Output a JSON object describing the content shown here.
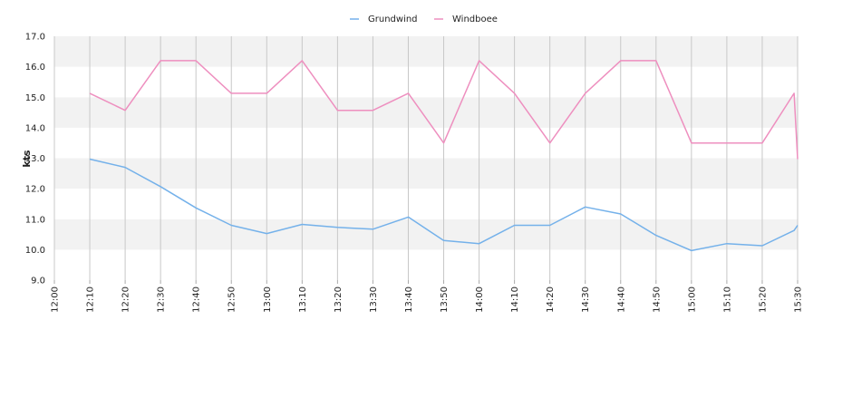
{
  "chart_data": {
    "type": "line",
    "title": "",
    "xlabel": "",
    "ylabel": "kts",
    "ylim": [
      9.0,
      17.0
    ],
    "y_ticks": [
      "9.0",
      "10.0",
      "11.0",
      "12.0",
      "13.0",
      "14.0",
      "15.0",
      "16.0",
      "17.0"
    ],
    "x_ticks": [
      "12:00",
      "12:10",
      "12:20",
      "12:30",
      "12:40",
      "12:50",
      "13:00",
      "13:10",
      "13:20",
      "13:30",
      "13:40",
      "13:50",
      "14:00",
      "14:10",
      "14:20",
      "14:30",
      "14:40",
      "14:50",
      "15:00",
      "15:10",
      "15:20",
      "15:30"
    ],
    "grid": true,
    "legend_position": "top-center",
    "series": [
      {
        "name": "Grundwind",
        "color": "#74b1ea",
        "x": [
          "12:10",
          "12:20",
          "12:30",
          "12:40",
          "12:50",
          "13:00",
          "13:10",
          "13:20",
          "13:30",
          "13:40",
          "13:50",
          "14:00",
          "14:10",
          "14:20",
          "14:30",
          "14:40",
          "14:50",
          "15:00",
          "15:10",
          "15:20",
          "15:29",
          "15:30"
        ],
        "values": [
          12.97,
          12.7,
          12.07,
          11.37,
          10.8,
          10.53,
          10.83,
          10.73,
          10.67,
          11.07,
          10.3,
          10.2,
          10.8,
          10.8,
          11.4,
          11.17,
          10.47,
          9.97,
          10.2,
          10.13,
          10.63,
          10.8
        ]
      },
      {
        "name": "Windboee",
        "color": "#ee8fbf",
        "x": [
          "12:10",
          "12:20",
          "12:30",
          "12:40",
          "12:50",
          "13:00",
          "13:10",
          "13:20",
          "13:30",
          "13:40",
          "13:50",
          "14:00",
          "14:10",
          "14:20",
          "14:30",
          "14:40",
          "14:50",
          "15:00",
          "15:10",
          "15:20",
          "15:29",
          "15:30"
        ],
        "values": [
          15.13,
          14.57,
          16.2,
          16.2,
          15.13,
          15.13,
          16.2,
          14.57,
          14.57,
          15.13,
          13.5,
          16.2,
          15.13,
          13.5,
          15.13,
          16.2,
          16.2,
          13.5,
          13.5,
          13.5,
          15.13,
          12.97
        ]
      }
    ]
  }
}
